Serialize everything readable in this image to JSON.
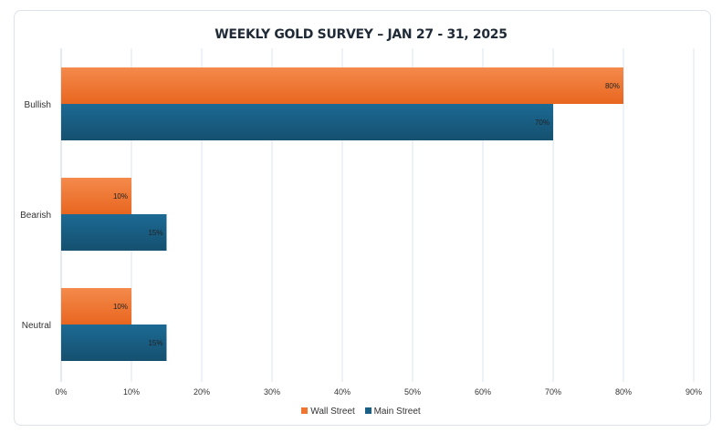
{
  "chart_data": {
    "type": "bar",
    "orientation": "horizontal",
    "title": "WEEKLY GOLD SURVEY – JAN 27 - 31, 2025",
    "categories": [
      "Bullish",
      "Bearish",
      "Neutral"
    ],
    "series": [
      {
        "name": "Wall Street",
        "values": [
          80,
          10,
          10
        ],
        "color": "#f07530"
      },
      {
        "name": "Main Street",
        "values": [
          70,
          15,
          15
        ],
        "color": "#1a5f85"
      }
    ],
    "data_labels": [
      [
        "80%",
        "10%",
        "10%"
      ],
      [
        "70%",
        "15%",
        "15%"
      ]
    ],
    "xlim": [
      0,
      90
    ],
    "xticks": [
      "0%",
      "10%",
      "20%",
      "30%",
      "40%",
      "50%",
      "60%",
      "70%",
      "80%",
      "90%"
    ],
    "xlabel": "",
    "ylabel": "",
    "grid": true,
    "legend_position": "bottom"
  }
}
